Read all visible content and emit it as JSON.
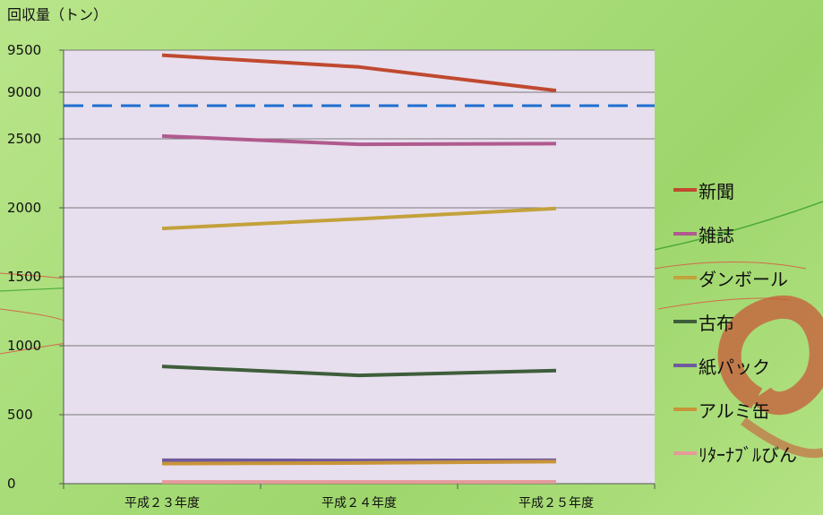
{
  "chart_data": {
    "type": "line",
    "unit_label": "回収量（トン）",
    "categories": [
      "平成２３年度",
      "平成２４年度",
      "平成２５年度"
    ],
    "y_ticks": [
      "0",
      "500",
      "1000",
      "1500",
      "2000",
      "2500",
      "9000",
      "9500"
    ],
    "axis_break": {
      "lower_max": 2600,
      "upper_min": 8800,
      "upper_max": 9500
    },
    "series": [
      {
        "name": "新聞",
        "color": "#c0492f",
        "values": [
          9440,
          9300,
          9020
        ]
      },
      {
        "name": "雑誌",
        "color": "#b05a8e",
        "values": [
          2520,
          2460,
          2465
        ]
      },
      {
        "name": "ダンボール",
        "color": "#c3a23c",
        "values": [
          1850,
          1920,
          1995
        ]
      },
      {
        "name": "古布",
        "color": "#3e5e3a",
        "values": [
          850,
          785,
          820
        ]
      },
      {
        "name": "紙パック",
        "color": "#6f5a9e",
        "values": [
          170,
          168,
          170
        ]
      },
      {
        "name": "アルミ缶",
        "color": "#c89438",
        "values": [
          145,
          150,
          160
        ]
      },
      {
        "name": "ﾘﾀｰﾅﾌﾞﾙびん",
        "color": "#e59a9a",
        "values": [
          12,
          12,
          13
        ]
      }
    ],
    "grid": true,
    "legend_position": "right"
  }
}
